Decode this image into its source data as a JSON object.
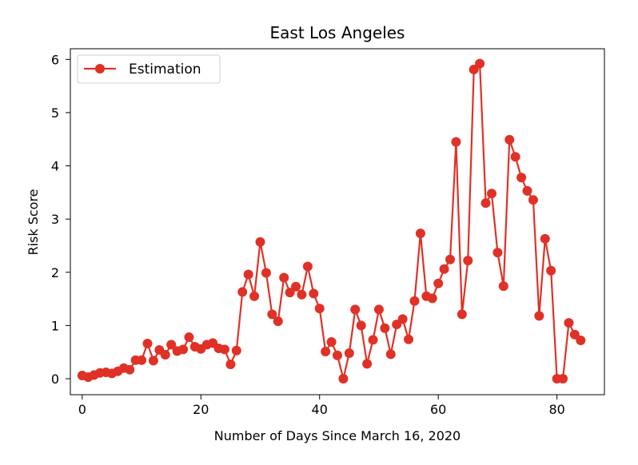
{
  "chart_data": {
    "type": "line",
    "title": "East Los Angeles",
    "xlabel": "Number of Days Since March 16, 2020",
    "ylabel": "Risk Score",
    "xlim": [
      -2,
      88
    ],
    "ylim": [
      -0.3,
      6.2
    ],
    "xticks": [
      0,
      20,
      40,
      60,
      80
    ],
    "yticks": [
      0,
      1,
      2,
      3,
      4,
      5,
      6
    ],
    "grid": false,
    "legend_position": "top-left",
    "series": [
      {
        "name": "Estimation",
        "color": "#e03127",
        "marker": "circle",
        "x": [
          0,
          1,
          2,
          3,
          4,
          5,
          6,
          7,
          8,
          9,
          10,
          11,
          12,
          13,
          14,
          15,
          16,
          17,
          18,
          19,
          20,
          21,
          22,
          23,
          24,
          25,
          26,
          27,
          28,
          29,
          30,
          31,
          32,
          33,
          34,
          35,
          36,
          37,
          38,
          39,
          40,
          41,
          42,
          43,
          44,
          45,
          46,
          47,
          48,
          49,
          50,
          51,
          52,
          53,
          54,
          55,
          56,
          57,
          58,
          59,
          60,
          61,
          62,
          63,
          64,
          65,
          66,
          67,
          68,
          69,
          70,
          71,
          72,
          73,
          74,
          75,
          76,
          77,
          78,
          79,
          80,
          81,
          82,
          83,
          84
        ],
        "values": [
          0.06,
          0.03,
          0.07,
          0.11,
          0.12,
          0.1,
          0.14,
          0.2,
          0.17,
          0.35,
          0.35,
          0.66,
          0.34,
          0.54,
          0.45,
          0.64,
          0.52,
          0.55,
          0.78,
          0.6,
          0.56,
          0.64,
          0.67,
          0.57,
          0.55,
          0.27,
          0.53,
          1.63,
          1.96,
          1.55,
          2.57,
          1.99,
          1.21,
          1.08,
          1.9,
          1.62,
          1.73,
          1.58,
          2.11,
          1.6,
          1.32,
          0.51,
          0.69,
          0.44,
          0.0,
          0.48,
          1.3,
          1.0,
          0.28,
          0.73,
          1.3,
          0.95,
          0.46,
          1.02,
          1.12,
          0.74,
          1.46,
          2.73,
          1.55,
          1.51,
          1.79,
          2.06,
          2.24,
          4.45,
          1.21,
          2.22,
          5.81,
          5.92,
          3.3,
          3.48,
          2.37,
          1.74,
          4.49,
          4.17,
          3.78,
          3.53,
          3.36,
          1.18,
          2.63,
          2.03,
          0.0,
          0.0,
          1.05,
          0.83,
          0.72
        ]
      }
    ]
  }
}
